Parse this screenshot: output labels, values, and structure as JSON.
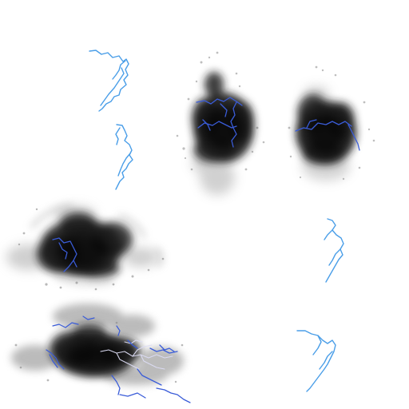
{
  "sheet": {
    "background": "#ffffff",
    "bolt_color": "#4a9ee8",
    "bolt_dark_color": "#3a5cd8",
    "smoke_color": "#202020",
    "smoke_light_color": "#7a7a7a"
  },
  "sprites": [
    {
      "kind": "lightning-bolt"
    },
    {
      "kind": "lightning-bolt"
    },
    {
      "kind": "storm-cloud"
    },
    {
      "kind": "storm-cloud"
    },
    {
      "kind": "storm-cloud"
    },
    {
      "kind": "lightning-bolt"
    },
    {
      "kind": "storm-cloud"
    },
    {
      "kind": "lightning-bolt"
    }
  ]
}
